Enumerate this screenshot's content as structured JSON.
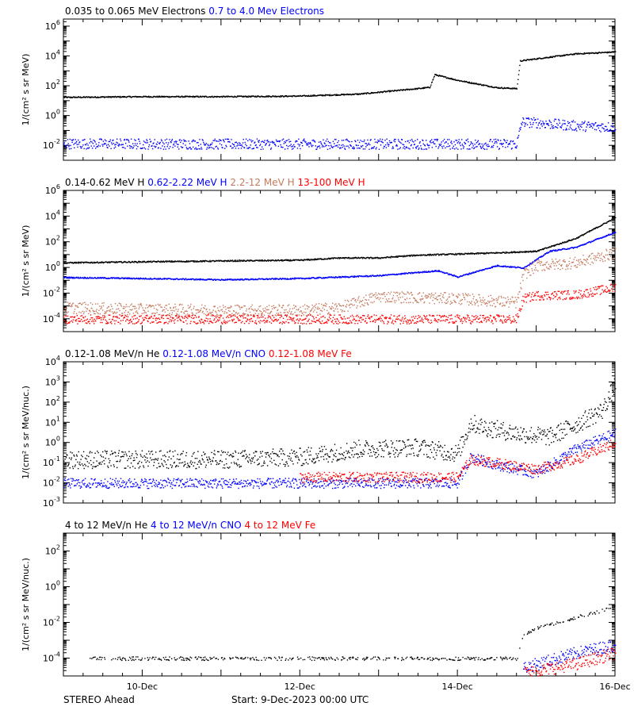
{
  "footer": {
    "spacecraft": "STEREO Ahead",
    "start_label": "Start:  9-Dec-2023 00:00 UTC"
  },
  "x_axis": {
    "range": [
      "2023-12-09",
      "2023-12-16"
    ],
    "tick_labels": [
      {
        "date": "2023-12-10",
        "label": "10-Dec"
      },
      {
        "date": "2023-12-12",
        "label": "12-Dec"
      },
      {
        "date": "2023-12-14",
        "label": "14-Dec"
      },
      {
        "date": "2023-12-16",
        "label": "16-Dec"
      }
    ]
  },
  "chart_data": [
    {
      "type": "scatter",
      "ylabel": "1/(cm² s sr MeV)",
      "ylog": true,
      "ylim": [
        0.001,
        3000000
      ],
      "yticks": [
        {
          "v": 0.01,
          "e": "-2"
        },
        {
          "v": 1,
          "e": "0"
        },
        {
          "v": 100,
          "e": "2"
        },
        {
          "v": 10000,
          "e": "4"
        },
        {
          "v": 1000000,
          "e": "6"
        }
      ],
      "legend": [
        {
          "name": "0.035 to 0.065 MeV Electrons",
          "color": "#000000"
        },
        {
          "name": "0.7 to 4.0 Mev Electrons",
          "color": "#0000ff"
        }
      ],
      "series": [
        {
          "name": "0.035 to 0.065 MeV Electrons",
          "color": "#000000",
          "scatter": 0.04,
          "x": [
            "2023-12-09",
            "2023-12-10",
            "2023-12-11",
            "2023-12-12",
            "2023-12-12 18:00",
            "2023-12-13 12:00",
            "2023-12-13 15:30",
            "2023-12-13 17:00",
            "2023-12-14 00:00",
            "2023-12-14 12:00",
            "2023-12-14 18:00",
            "2023-12-14 19:00",
            "2023-12-15 00:00",
            "2023-12-15 12:00",
            "2023-12-16"
          ],
          "y": [
            18,
            20,
            20,
            22,
            30,
            70,
            85,
            600,
            250,
            80,
            70,
            5000,
            7000,
            15000,
            20000
          ]
        },
        {
          "name": "0.7 to 4.0 Mev Electrons",
          "color": "#0000ff",
          "scatter": 0.35,
          "x": [
            "2023-12-09",
            "2023-12-11",
            "2023-12-13",
            "2023-12-14 18:00",
            "2023-12-14 19:30",
            "2023-12-15 00:00",
            "2023-12-15 12:00",
            "2023-12-16"
          ],
          "y": [
            0.014,
            0.013,
            0.013,
            0.013,
            0.4,
            0.35,
            0.22,
            0.18
          ]
        }
      ]
    },
    {
      "type": "scatter",
      "ylabel": "1/(cm² s sr MeV)",
      "ylog": true,
      "ylim": [
        1e-05,
        1000000
      ],
      "yticks": [
        {
          "v": 0.0001,
          "e": "-4"
        },
        {
          "v": 0.01,
          "e": "-2"
        },
        {
          "v": 1,
          "e": "0"
        },
        {
          "v": 100,
          "e": "2"
        },
        {
          "v": 10000,
          "e": "4"
        },
        {
          "v": 1000000,
          "e": "6"
        }
      ],
      "legend": [
        {
          "name": "0.14-0.62 MeV H",
          "color": "#000000"
        },
        {
          "name": "0.62-2.22 MeV H",
          "color": "#0000ff"
        },
        {
          "name": "2.2-12 MeV H",
          "color": "#c47a5e"
        },
        {
          "name": "13-100 MeV H",
          "color": "#ff0000"
        }
      ],
      "series": [
        {
          "name": "0.14-0.62 MeV H",
          "color": "#000000",
          "scatter": 0.05,
          "x": [
            "2023-12-09",
            "2023-12-10",
            "2023-12-11",
            "2023-12-12",
            "2023-12-12 12:00",
            "2023-12-13",
            "2023-12-13 12:00",
            "2023-12-14",
            "2023-12-14 12:00",
            "2023-12-15",
            "2023-12-15 12:00",
            "2023-12-16"
          ],
          "y": [
            2.5,
            3,
            3.5,
            4,
            6,
            6,
            10,
            12,
            15,
            20,
            200,
            8000
          ]
        },
        {
          "name": "0.62-2.22 MeV H",
          "color": "#0000ff",
          "scatter": 0.05,
          "x": [
            "2023-12-09",
            "2023-12-10",
            "2023-12-11",
            "2023-12-12",
            "2023-12-13",
            "2023-12-13 18:00",
            "2023-12-14",
            "2023-12-14 12:00",
            "2023-12-14 20:00",
            "2023-12-15 04:00",
            "2023-12-15 12:00",
            "2023-12-16"
          ],
          "y": [
            0.18,
            0.15,
            0.12,
            0.15,
            0.25,
            0.6,
            0.2,
            1.5,
            1.0,
            20,
            40,
            600
          ]
        },
        {
          "name": "2.2-12 MeV H",
          "color": "#c47a5e",
          "scatter": 0.45,
          "x": [
            "2023-12-09",
            "2023-12-10",
            "2023-12-11",
            "2023-12-12",
            "2023-12-12 12:00",
            "2023-12-13",
            "2023-12-14",
            "2023-12-14 18:00",
            "2023-12-14 20:00",
            "2023-12-15",
            "2023-12-15 12:00",
            "2023-12-16"
          ],
          "y": [
            0.0008,
            0.0006,
            0.0005,
            0.0005,
            0.0008,
            0.006,
            0.004,
            0.002,
            0.3,
            1.5,
            2.5,
            15
          ]
        },
        {
          "name": "13-100 MeV H",
          "color": "#ff0000",
          "scatter": 0.35,
          "x": [
            "2023-12-09",
            "2023-12-11",
            "2023-12-13",
            "2023-12-14 18:00",
            "2023-12-14 20:00",
            "2023-12-15",
            "2023-12-15 12:00",
            "2023-12-16"
          ],
          "y": [
            0.0001,
            0.0001,
            0.0001,
            0.0001,
            0.004,
            0.007,
            0.008,
            0.03
          ]
        }
      ]
    },
    {
      "type": "scatter",
      "ylabel": "1/(cm² s sr MeV/nuc.)",
      "ylog": true,
      "ylim": [
        0.001,
        10000
      ],
      "yticks": [
        {
          "v": 0.001,
          "e": "-3"
        },
        {
          "v": 0.01,
          "e": "-2"
        },
        {
          "v": 0.1,
          "e": "-1"
        },
        {
          "v": 1,
          "e": "0"
        },
        {
          "v": 10,
          "e": "1"
        },
        {
          "v": 100,
          "e": "2"
        },
        {
          "v": 1000,
          "e": "3"
        },
        {
          "v": 10000,
          "e": "4"
        }
      ],
      "legend": [
        {
          "name": "0.12-1.08 MeV/n He",
          "color": "#000000"
        },
        {
          "name": "0.12-1.08 MeV/n CNO",
          "color": "#0000ff"
        },
        {
          "name": "0.12-1.08 MeV Fe",
          "color": "#ff0000"
        }
      ],
      "series": [
        {
          "name": "0.12-1.08 MeV/n He",
          "color": "#000000",
          "scatter": 0.45,
          "x": [
            "2023-12-09",
            "2023-12-11",
            "2023-12-12",
            "2023-12-12 18:00",
            "2023-12-13 12:00",
            "2023-12-14",
            "2023-12-14 04:00",
            "2023-12-14 08:00",
            "2023-12-14 18:00",
            "2023-12-15 04:00",
            "2023-12-15 12:00",
            "2023-12-15 20:00",
            "2023-12-16"
          ],
          "y": [
            0.15,
            0.15,
            0.2,
            0.5,
            0.6,
            0.3,
            10,
            6,
            3,
            2,
            8,
            40,
            800
          ]
        },
        {
          "name": "0.12-1.08 MeV/n CNO",
          "color": "#0000ff",
          "scatter": 0.25,
          "x": [
            "2023-12-09",
            "2023-12-11",
            "2023-12-13",
            "2023-12-14",
            "2023-12-14 04:00",
            "2023-12-14 12:00",
            "2023-12-15",
            "2023-12-15 12:00",
            "2023-12-16"
          ],
          "y": [
            0.01,
            0.01,
            0.01,
            0.01,
            0.2,
            0.08,
            0.03,
            0.5,
            3
          ]
        },
        {
          "name": "0.12-1.08 MeV Fe",
          "color": "#ff0000",
          "scatter": 0.25,
          "x": [
            "2023-12-12",
            "2023-12-13",
            "2023-12-14",
            "2023-12-14 04:00",
            "2023-12-14 12:00",
            "2023-12-15",
            "2023-12-15 12:00",
            "2023-12-16"
          ],
          "y": [
            0.02,
            0.02,
            0.02,
            0.15,
            0.1,
            0.05,
            0.15,
            1
          ]
        }
      ]
    },
    {
      "type": "scatter",
      "ylabel": "1/(cm² s sr MeV/nuc.)",
      "ylog": true,
      "ylim": [
        1e-05,
        1000
      ],
      "yticks": [
        {
          "v": 0.0001,
          "e": "-4"
        },
        {
          "v": 0.01,
          "e": "-2"
        },
        {
          "v": 1,
          "e": "0"
        },
        {
          "v": 100,
          "e": "2"
        }
      ],
      "legend": [
        {
          "name": "4 to 12 MeV/n He",
          "color": "#000000"
        },
        {
          "name": "4 to 12 MeV/n CNO",
          "color": "#0000ff"
        },
        {
          "name": "4 to 12 MeV Fe",
          "color": "#ff0000"
        }
      ],
      "series": [
        {
          "name": "4 to 12 MeV/n He",
          "color": "#000000",
          "scatter": 0.1,
          "sparse": true,
          "x": [
            "2023-12-09 08:00",
            "2023-12-11",
            "2023-12-13",
            "2023-12-14 18:00",
            "2023-12-14 20:00",
            "2023-12-15",
            "2023-12-15 12:00",
            "2023-12-16"
          ],
          "y": [
            0.0001,
            0.0001,
            0.0001,
            0.0001,
            0.002,
            0.005,
            0.02,
            0.08
          ]
        },
        {
          "name": "4 to 12 MeV/n CNO",
          "color": "#0000ff",
          "scatter": 0.35,
          "x": [
            "2023-12-14 20:00",
            "2023-12-15 12:00",
            "2023-12-16"
          ],
          "y": [
            3e-05,
            0.0002,
            0.0006
          ]
        },
        {
          "name": "4 to 12 MeV Fe",
          "color": "#ff0000",
          "scatter": 0.35,
          "x": [
            "2023-12-14 20:00",
            "2023-12-15 12:00",
            "2023-12-16"
          ],
          "y": [
            1.5e-05,
            5e-05,
            0.0002
          ]
        }
      ]
    }
  ]
}
